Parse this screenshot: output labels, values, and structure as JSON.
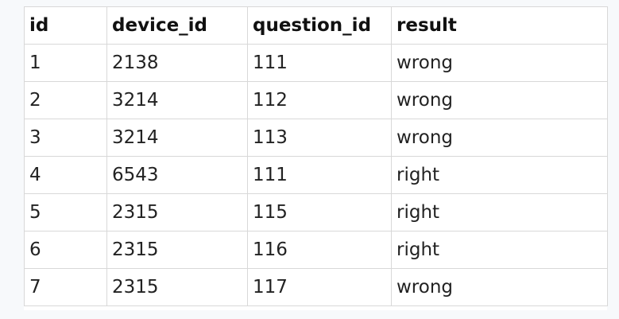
{
  "table": {
    "headers": [
      "id",
      "device_id",
      "question_id",
      "result"
    ],
    "rows": [
      [
        "1",
        "2138",
        "111",
        "wrong"
      ],
      [
        "2",
        "3214",
        "112",
        "wrong"
      ],
      [
        "3",
        "3214",
        "113",
        "wrong"
      ],
      [
        "4",
        "6543",
        "111",
        "right"
      ],
      [
        "5",
        "2315",
        "115",
        "right"
      ],
      [
        "6",
        "2315",
        "116",
        "right"
      ],
      [
        "7",
        "2315",
        "117",
        "wrong"
      ]
    ]
  }
}
